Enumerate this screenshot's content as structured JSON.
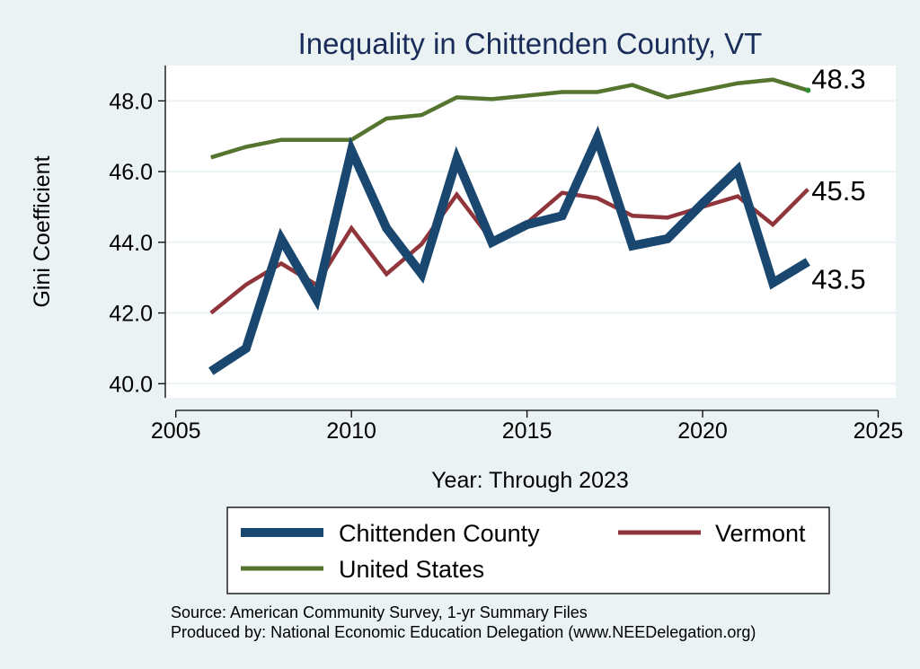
{
  "chart_data": {
    "type": "line",
    "title": "Inequality in Chittenden County, VT",
    "xlabel": "Year: Through 2023",
    "ylabel": "Gini Coefficient",
    "xlim": [
      2004.7,
      2025.5
    ],
    "ylim": [
      39.6,
      49.0
    ],
    "x_ticks": [
      2005,
      2010,
      2015,
      2020,
      2025
    ],
    "y_ticks": [
      40.0,
      42.0,
      44.0,
      46.0,
      48.0
    ],
    "x_tick_labels": [
      "2005",
      "2010",
      "2015",
      "2020",
      "2025"
    ],
    "y_tick_labels": [
      "40.0",
      "42.0",
      "44.0",
      "46.0",
      "48.0"
    ],
    "grid": true,
    "legend_position": "bottom",
    "x": [
      2006,
      2007,
      2008,
      2009,
      2010,
      2011,
      2012,
      2013,
      2014,
      2015,
      2016,
      2017,
      2018,
      2019,
      2020,
      2021,
      2022,
      2023
    ],
    "series": [
      {
        "name": "Chittenden County",
        "color": "#1a476f",
        "weight": "thick",
        "values": [
          40.35,
          41.0,
          44.1,
          42.4,
          46.6,
          44.4,
          43.1,
          46.35,
          44.0,
          44.5,
          44.75,
          46.95,
          43.9,
          44.1,
          45.1,
          46.05,
          42.85,
          43.45
        ],
        "end_label": "43.5"
      },
      {
        "name": "Vermont",
        "color": "#90353b",
        "weight": "medium",
        "values": [
          42.0,
          42.8,
          43.4,
          42.8,
          44.4,
          43.1,
          43.95,
          45.35,
          44.05,
          44.55,
          45.4,
          45.25,
          44.75,
          44.7,
          45.0,
          45.3,
          44.5,
          45.5
        ],
        "end_label": "45.5"
      },
      {
        "name": "United States",
        "color": "#55752f",
        "weight": "medium",
        "values": [
          46.4,
          46.7,
          46.9,
          46.9,
          46.9,
          47.5,
          47.6,
          48.1,
          48.05,
          48.15,
          48.25,
          48.25,
          48.45,
          48.1,
          48.3,
          48.5,
          48.6,
          48.3
        ],
        "end_label": "48.3"
      }
    ],
    "notes": [
      "Source: American Community Survey, 1-yr Summary Files",
      "Produced by: National Economic Education Delegation (www.NEEDelegation.org)"
    ]
  }
}
